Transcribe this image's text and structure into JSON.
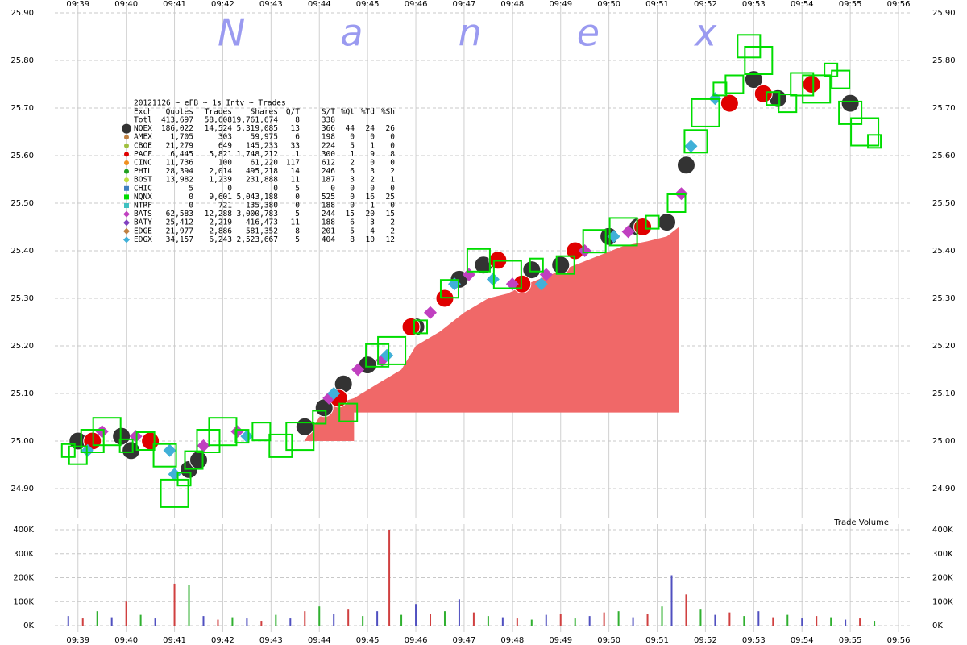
{
  "chart_data": [
    {
      "type": "scatter",
      "watermark": "Nanex",
      "legend_title": "20121126 ~ eFB ~ 1s Intv ~ Trades",
      "columns": [
        "Exch",
        "Quotes",
        "Trades",
        "Shares",
        "Q/T",
        "S/T",
        "%Qt",
        "%Td",
        "%Sh"
      ],
      "xlim": [
        38.52,
        56.25
      ],
      "xticks": [
        {
          "value": 39,
          "label": "09:39"
        },
        {
          "value": 40,
          "label": "09:40"
        },
        {
          "value": 41,
          "label": "09:41"
        },
        {
          "value": 42,
          "label": "09:42"
        },
        {
          "value": 43,
          "label": "09:43"
        },
        {
          "value": 44,
          "label": "09:44"
        },
        {
          "value": 45,
          "label": "09:45"
        },
        {
          "value": 46,
          "label": "09:46"
        },
        {
          "value": 47,
          "label": "09:47"
        },
        {
          "value": 48,
          "label": "09:48"
        },
        {
          "value": 49,
          "label": "09:49"
        },
        {
          "value": 50,
          "label": "09:50"
        },
        {
          "value": 51,
          "label": "09:51"
        },
        {
          "value": 52,
          "label": "09:52"
        },
        {
          "value": 53,
          "label": "09:53"
        },
        {
          "value": 54,
          "label": "09:54"
        },
        {
          "value": 55,
          "label": "09:55"
        },
        {
          "value": 56,
          "label": "09:56"
        }
      ],
      "ylim": [
        24.85,
        25.9
      ],
      "yticks": [
        {
          "value": 24.9,
          "label": "24.90"
        },
        {
          "value": 25,
          "label": "25.00"
        },
        {
          "value": 25.1,
          "label": "25.10"
        },
        {
          "value": 25.2,
          "label": "25.20"
        },
        {
          "value": 25.3,
          "label": "25.30"
        },
        {
          "value": 25.4,
          "label": "25.40"
        },
        {
          "value": 25.5,
          "label": "25.50"
        },
        {
          "value": 25.6,
          "label": "25.60"
        },
        {
          "value": 25.7,
          "label": "25.70"
        },
        {
          "value": 25.8,
          "label": "25.80"
        },
        {
          "value": 25.9,
          "label": "25.90"
        }
      ],
      "grid": true,
      "area": {
        "color": "#f06868",
        "x": [
          43.69,
          44.0,
          44.4,
          44.72,
          44.72,
          45.2,
          45.7,
          46.0,
          46.5,
          47.0,
          47.5,
          47.9,
          48.3,
          48.8,
          49.3,
          49.8,
          50.3,
          50.8,
          51.2,
          51.45
        ],
        "values": [
          25.0,
          25.05,
          25.08,
          25.09,
          25.09,
          25.12,
          25.15,
          25.2,
          25.23,
          25.27,
          25.3,
          25.31,
          25.33,
          25.35,
          25.37,
          25.39,
          25.41,
          25.42,
          25.43,
          25.45
        ],
        "base": [
          25.0,
          25.0,
          25.0,
          25.0,
          25.06,
          25.06,
          25.06,
          25.06,
          25.06,
          25.06,
          25.06,
          25.06,
          25.06,
          25.06,
          25.06,
          25.06,
          25.06,
          25.06,
          25.06,
          25.06
        ]
      },
      "series": [
        {
          "name": "Totl",
          "stats": [
            "413,697",
            "58,608",
            "19,761,674",
            "8",
            "338"
          ]
        },
        {
          "name": "NQEX",
          "color": "#333333",
          "marker": "circle",
          "stats": [
            "186,022",
            "14,524",
            "5,319,085",
            "13",
            "366",
            "44",
            "24",
            "26"
          ],
          "x": [
            39.0,
            39.9,
            40.1,
            41.3,
            41.5,
            43.7,
            44.1,
            44.5,
            45.0,
            46.0,
            46.9,
            47.4,
            48.4,
            49.0,
            50.0,
            50.6,
            51.2,
            51.6,
            53.0,
            53.5,
            55.0
          ],
          "values": [
            25.0,
            25.01,
            24.98,
            24.94,
            24.96,
            25.03,
            25.07,
            25.12,
            25.16,
            25.24,
            25.34,
            25.37,
            25.36,
            25.37,
            25.43,
            25.45,
            25.46,
            25.58,
            25.76,
            25.72,
            25.71
          ]
        },
        {
          "name": "AMEX",
          "color": "#c08040",
          "marker": "circle",
          "stats": [
            "1,705",
            "303",
            "59,975",
            "6",
            "198",
            "0",
            "0",
            "0"
          ]
        },
        {
          "name": "CBOE",
          "color": "#a0c040",
          "marker": "circle",
          "stats": [
            "21,279",
            "649",
            "145,233",
            "33",
            "224",
            "5",
            "1",
            "0"
          ]
        },
        {
          "name": "PACF",
          "color": "#e00000",
          "marker": "circle",
          "stats": [
            "6,445",
            "5,821",
            "1,748,212",
            "1",
            "300",
            "1",
            "9",
            "8"
          ],
          "x": [
            39.3,
            40.5,
            44.4,
            45.9,
            46.6,
            47.7,
            48.2,
            49.3,
            50.7,
            52.5,
            53.2,
            54.2
          ],
          "values": [
            25.0,
            25.0,
            25.09,
            25.24,
            25.3,
            25.38,
            25.33,
            25.4,
            25.45,
            25.71,
            25.73,
            25.75
          ]
        },
        {
          "name": "CINC",
          "color": "#f09020",
          "marker": "circle",
          "stats": [
            "11,736",
            "100",
            "61,220",
            "117",
            "612",
            "2",
            "0",
            "0"
          ]
        },
        {
          "name": "PHIL",
          "color": "#20a020",
          "marker": "circle",
          "stats": [
            "28,394",
            "2,014",
            "495,218",
            "14",
            "246",
            "6",
            "3",
            "2"
          ]
        },
        {
          "name": "BOST",
          "color": "#c0e040",
          "marker": "circle",
          "stats": [
            "13,982",
            "1,239",
            "231,888",
            "11",
            "187",
            "3",
            "2",
            "1"
          ]
        },
        {
          "name": "CHIC",
          "color": "#4080c0",
          "marker": "square",
          "stats": [
            "5",
            "0",
            "0",
            "5",
            "0",
            "0",
            "0",
            "0"
          ]
        },
        {
          "name": "NQNX",
          "color": "#00dd00",
          "marker": "square",
          "stats": [
            "0",
            "9,601",
            "5,043,188",
            "0",
            "525",
            "0",
            "16",
            "25"
          ],
          "x": [
            38.8,
            39.0,
            39.3,
            39.6,
            40.0,
            40.4,
            40.8,
            41.0,
            41.2,
            41.4,
            41.7,
            42.0,
            42.4,
            42.8,
            43.2,
            43.6,
            44.0,
            44.6,
            45.2,
            45.5,
            46.1,
            46.7,
            47.3,
            47.9,
            48.5,
            49.1,
            49.7,
            50.3,
            50.9,
            51.4,
            51.8,
            52.0,
            52.3,
            52.6,
            52.9,
            53.1,
            53.4,
            53.7,
            54.0,
            54.3,
            54.6,
            54.8,
            55.0,
            55.3,
            55.5
          ],
          "values": [
            24.98,
            24.97,
            25.0,
            25.02,
            24.99,
            25.0,
            24.97,
            24.89,
            24.92,
            24.96,
            25.0,
            25.02,
            25.01,
            25.02,
            24.99,
            25.01,
            25.05,
            25.06,
            25.18,
            25.19,
            25.24,
            25.32,
            25.38,
            25.35,
            25.37,
            25.37,
            25.42,
            25.44,
            25.46,
            25.5,
            25.63,
            25.69,
            25.74,
            25.75,
            25.83,
            25.8,
            25.72,
            25.71,
            25.75,
            25.74,
            25.78,
            25.76,
            25.69,
            25.65,
            25.63
          ]
        },
        {
          "name": "NTRF",
          "color": "#40c0c0",
          "marker": "square",
          "stats": [
            "0",
            "721",
            "135,380",
            "0",
            "188",
            "0",
            "1",
            "0"
          ]
        },
        {
          "name": "BATS",
          "color": "#c040c0",
          "marker": "diamond",
          "stats": [
            "62,583",
            "12,288",
            "3,000,783",
            "5",
            "244",
            "15",
            "20",
            "15"
          ],
          "x": [
            39.5,
            40.2,
            41.6,
            42.3,
            44.2,
            44.8,
            45.3,
            46.3,
            47.1,
            48.0,
            48.7,
            49.5,
            50.4,
            51.5
          ],
          "values": [
            25.02,
            25.01,
            24.99,
            25.02,
            25.09,
            25.15,
            25.17,
            25.27,
            25.35,
            25.33,
            25.35,
            25.4,
            25.44,
            25.52
          ]
        },
        {
          "name": "BATY",
          "color": "#8040c0",
          "marker": "diamond",
          "stats": [
            "25,412",
            "2,219",
            "416,473",
            "11",
            "188",
            "6",
            "3",
            "2"
          ]
        },
        {
          "name": "EDGE",
          "color": "#c08040",
          "marker": "diamond",
          "stats": [
            "21,977",
            "2,886",
            "581,352",
            "8",
            "201",
            "5",
            "4",
            "2"
          ]
        },
        {
          "name": "EDGX",
          "color": "#40b0d8",
          "marker": "diamond",
          "stats": [
            "34,157",
            "6,243",
            "2,523,667",
            "5",
            "404",
            "8",
            "10",
            "12"
          ],
          "x": [
            39.2,
            40.9,
            41.0,
            42.5,
            44.3,
            45.4,
            46.8,
            47.6,
            48.6,
            50.1,
            51.7,
            52.2
          ],
          "values": [
            24.98,
            24.98,
            24.93,
            25.01,
            25.1,
            25.18,
            25.33,
            25.34,
            25.33,
            25.43,
            25.62,
            25.72
          ]
        }
      ]
    },
    {
      "type": "bar",
      "label": "Trade Volume",
      "xlim": [
        38.52,
        56.25
      ],
      "xticks": [
        {
          "value": 39,
          "label": "09:39"
        },
        {
          "value": 40,
          "label": "09:40"
        },
        {
          "value": 41,
          "label": "09:41"
        },
        {
          "value": 42,
          "label": "09:42"
        },
        {
          "value": 43,
          "label": "09:43"
        },
        {
          "value": 44,
          "label": "09:44"
        },
        {
          "value": 45,
          "label": "09:45"
        },
        {
          "value": 46,
          "label": "09:46"
        },
        {
          "value": 47,
          "label": "09:47"
        },
        {
          "value": 48,
          "label": "09:48"
        },
        {
          "value": 49,
          "label": "09:49"
        },
        {
          "value": 50,
          "label": "09:50"
        },
        {
          "value": 51,
          "label": "09:51"
        },
        {
          "value": 52,
          "label": "09:52"
        },
        {
          "value": 53,
          "label": "09:53"
        },
        {
          "value": 54,
          "label": "09:54"
        },
        {
          "value": 55,
          "label": "09:55"
        },
        {
          "value": 56,
          "label": "09:56"
        }
      ],
      "ylim": [
        0,
        400000
      ],
      "yticks": [
        {
          "value": 0,
          "label": "0K"
        },
        {
          "value": 100000,
          "label": "100K"
        },
        {
          "value": 200000,
          "label": "200K"
        },
        {
          "value": 300000,
          "label": "300K"
        },
        {
          "value": 400000,
          "label": "400K"
        }
      ],
      "grid": true,
      "colors": [
        "#5050c0",
        "#d04040",
        "#30b030"
      ],
      "x": [
        38.8,
        39.1,
        39.4,
        39.7,
        40.0,
        40.3,
        40.6,
        41.0,
        41.3,
        41.6,
        41.9,
        42.2,
        42.5,
        42.8,
        43.1,
        43.4,
        43.7,
        44.0,
        44.3,
        44.6,
        44.9,
        45.2,
        45.45,
        45.7,
        46.0,
        46.3,
        46.6,
        46.9,
        47.2,
        47.5,
        47.8,
        48.1,
        48.4,
        48.7,
        49.0,
        49.3,
        49.6,
        49.9,
        50.2,
        50.5,
        50.8,
        51.1,
        51.3,
        51.6,
        51.9,
        52.2,
        52.5,
        52.8,
        53.1,
        53.4,
        53.7,
        54.0,
        54.3,
        54.6,
        54.9,
        55.2,
        55.5
      ],
      "values": [
        40000,
        30000,
        60000,
        35000,
        100000,
        45000,
        30000,
        175000,
        170000,
        40000,
        25000,
        35000,
        30000,
        20000,
        45000,
        30000,
        60000,
        80000,
        50000,
        70000,
        40000,
        60000,
        400000,
        45000,
        90000,
        50000,
        60000,
        110000,
        55000,
        40000,
        35000,
        30000,
        25000,
        45000,
        50000,
        30000,
        40000,
        55000,
        60000,
        35000,
        50000,
        80000,
        210000,
        130000,
        70000,
        45000,
        55000,
        40000,
        60000,
        35000,
        45000,
        30000,
        40000,
        35000,
        25000,
        30000,
        20000
      ]
    }
  ]
}
